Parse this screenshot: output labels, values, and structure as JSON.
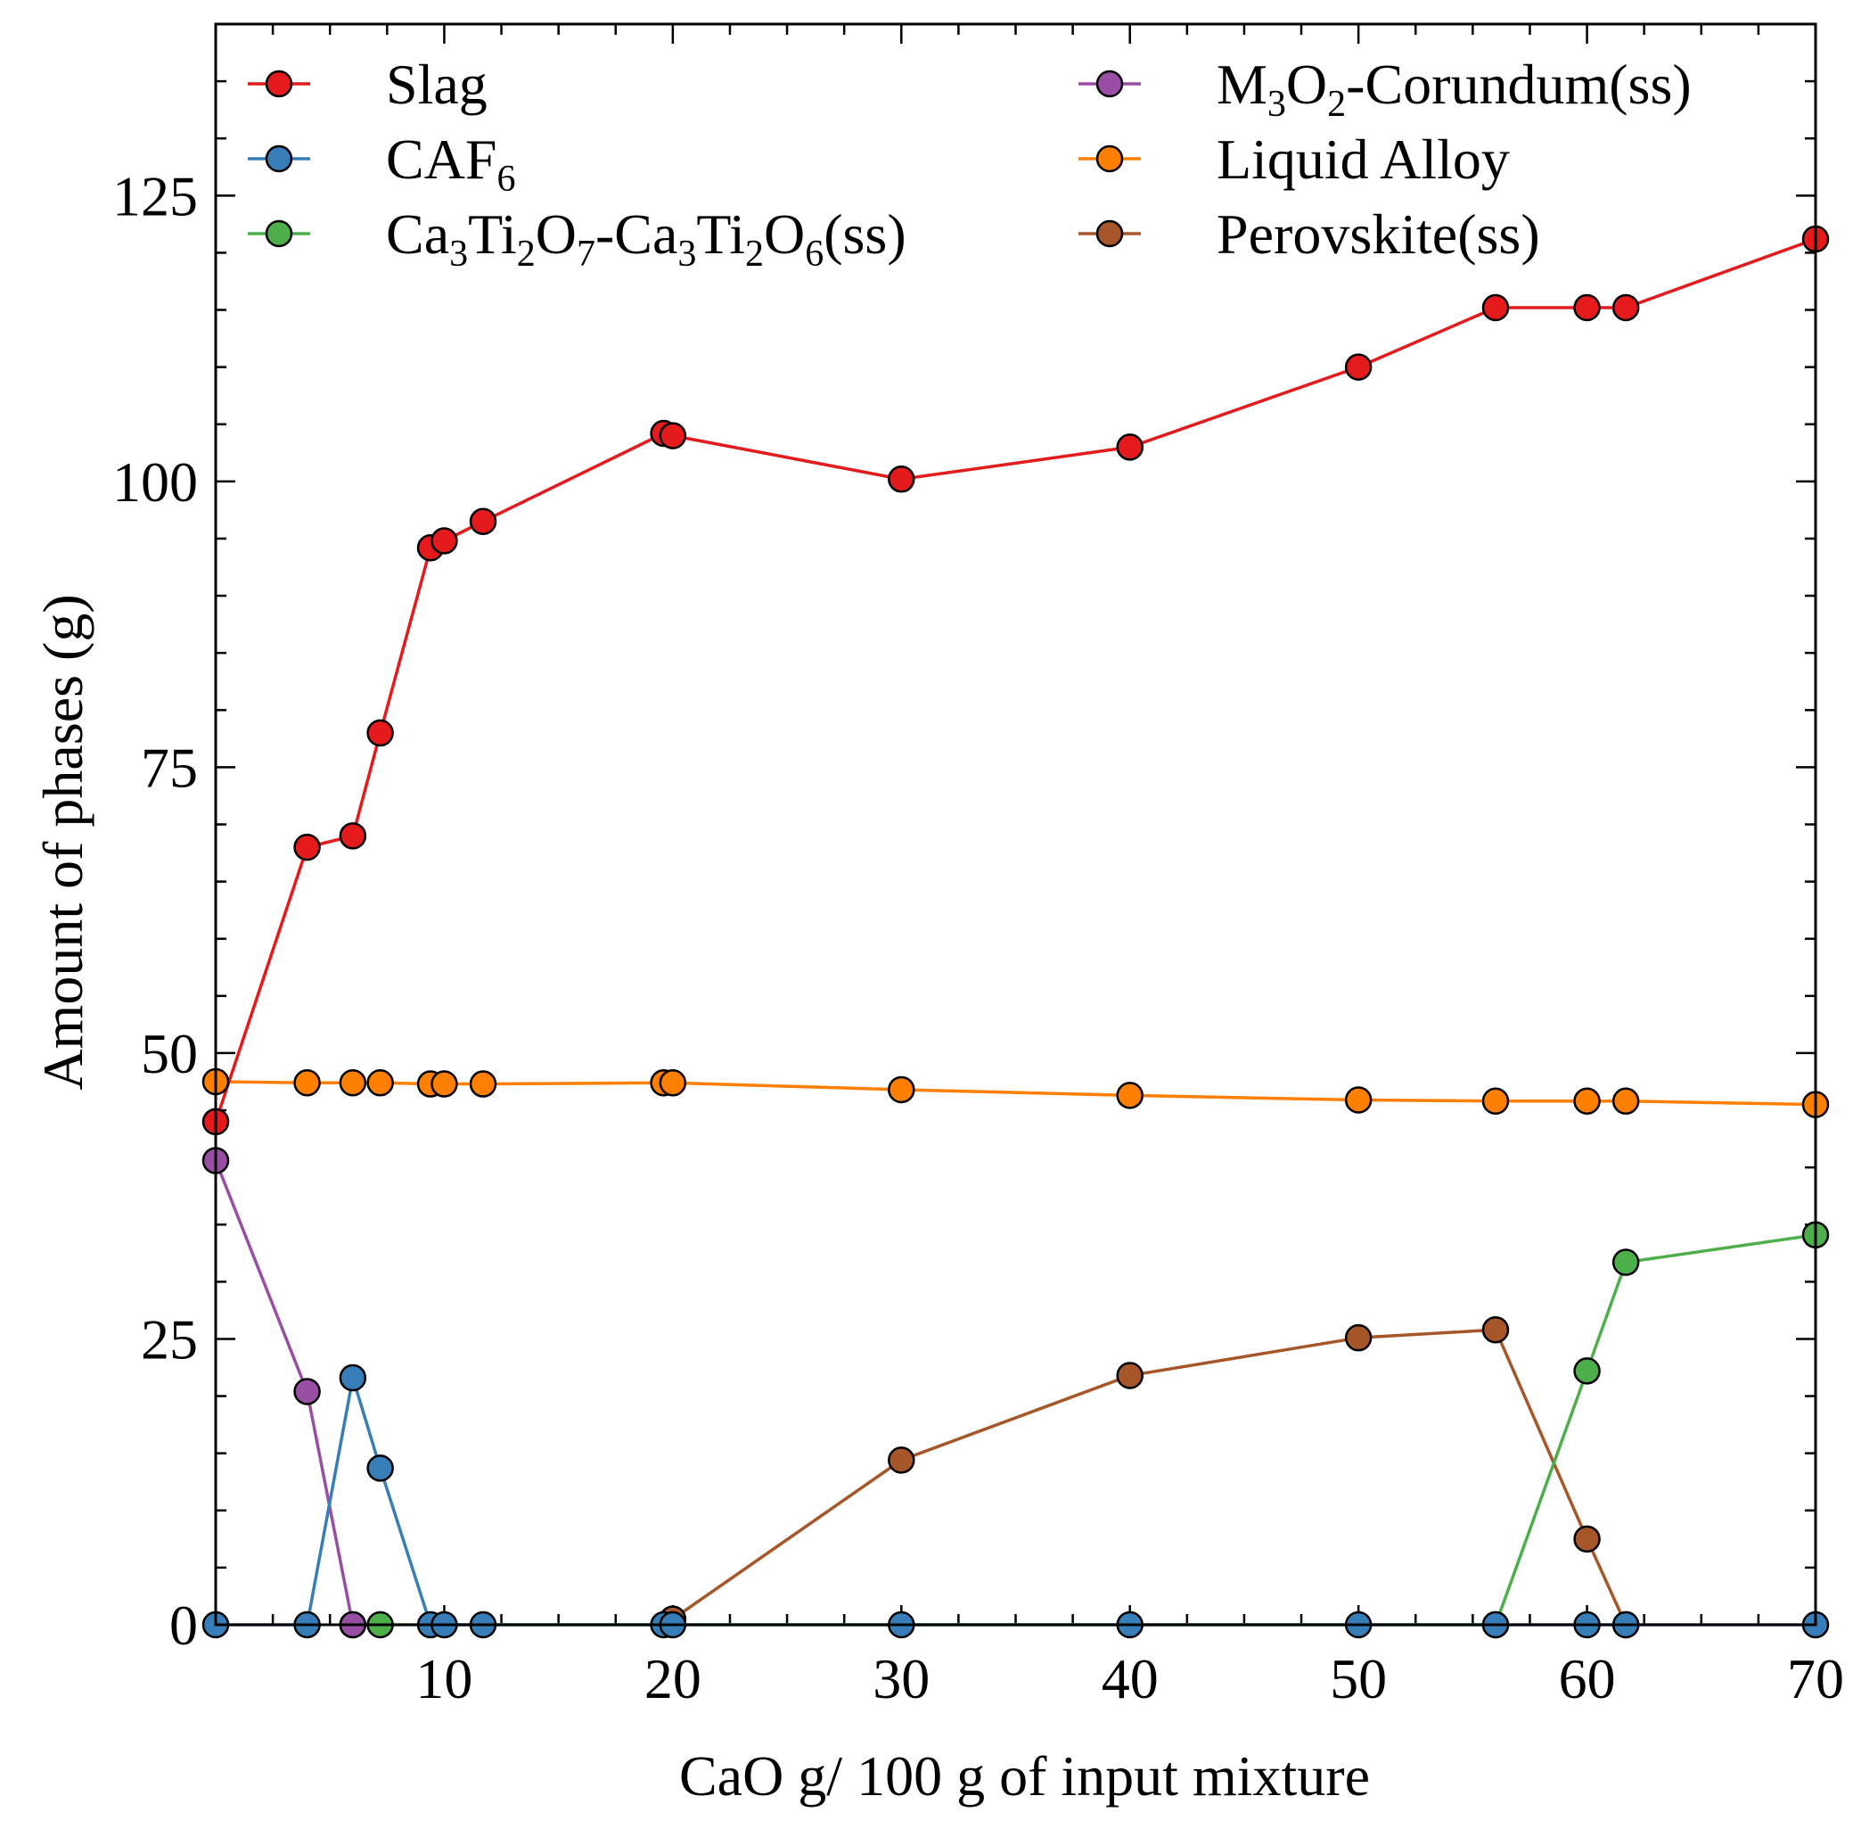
{
  "chart_data": {
    "type": "line",
    "title": "",
    "xlabel": "CaO g/ 100 g of input mixture",
    "ylabel": "Amount of phases (g)",
    "xlim": [
      0,
      70
    ],
    "ylim": [
      0,
      140
    ],
    "xticks": [
      10,
      20,
      30,
      40,
      50,
      60,
      70
    ],
    "yticks": [
      0,
      25,
      50,
      75,
      100,
      125
    ],
    "legend_position": "top",
    "series": [
      {
        "name": "Slag",
        "legend_parts": [
          [
            "Slag",
            ""
          ]
        ],
        "color": "#e41a1c",
        "x": [
          0,
          4,
          6,
          7.2,
          9.4,
          10,
          11.7,
          19.6,
          20,
          30,
          40,
          50,
          56,
          60,
          61.7,
          70
        ],
        "y": [
          44,
          68,
          69,
          78,
          94.2,
          94.8,
          96.5,
          104.2,
          104,
          100.2,
          103,
          110,
          115.2,
          115.2,
          115.2,
          121.2
        ]
      },
      {
        "name": "CAF6",
        "legend_parts": [
          [
            "CAF",
            ""
          ],
          [
            "6",
            "sub"
          ]
        ],
        "color": "#377eb8",
        "x": [
          0,
          4,
          6,
          7.2,
          9.4,
          10,
          11.7,
          19.6,
          20,
          30,
          40,
          50,
          56,
          60,
          61.7,
          70
        ],
        "y": [
          0,
          0,
          21.6,
          13.7,
          0,
          0,
          0,
          0,
          0,
          0,
          0,
          0,
          0,
          0,
          0,
          0
        ]
      },
      {
        "name": "Ca3Ti2O7-Ca3Ti2O6(ss)",
        "legend_parts": [
          [
            "Ca",
            ""
          ],
          [
            "3",
            "sub"
          ],
          [
            "Ti",
            ""
          ],
          [
            "2",
            "sub"
          ],
          [
            "O",
            ""
          ],
          [
            "7",
            "sub"
          ],
          [
            "-Ca",
            ""
          ],
          [
            "3",
            "sub"
          ],
          [
            "Ti",
            ""
          ],
          [
            "2",
            "sub"
          ],
          [
            "O",
            ""
          ],
          [
            "6",
            "sub"
          ],
          [
            "(ss)",
            ""
          ]
        ],
        "color": "#4daf4a",
        "x": [
          6,
          7.2,
          56,
          60,
          61.7,
          70
        ],
        "y": [
          0,
          0,
          0,
          22.2,
          31.7,
          34.1
        ]
      },
      {
        "name": "M3O2-Corundum(ss)",
        "legend_parts": [
          [
            "M",
            ""
          ],
          [
            "3",
            "sub"
          ],
          [
            "O",
            ""
          ],
          [
            "2",
            "sub"
          ],
          [
            "-Corundum(ss)",
            ""
          ]
        ],
        "color": "#984ea3",
        "x": [
          0,
          4,
          6
        ],
        "y": [
          40.6,
          20.4,
          0
        ]
      },
      {
        "name": "Liquid Alloy",
        "legend_parts": [
          [
            "Liquid Alloy",
            ""
          ]
        ],
        "color": "#ff7f00",
        "x": [
          0,
          4,
          6,
          7.2,
          9.4,
          10,
          11.7,
          19.6,
          20,
          30,
          40,
          50,
          56,
          60,
          61.7,
          70
        ],
        "y": [
          47.5,
          47.4,
          47.4,
          47.4,
          47.3,
          47.3,
          47.3,
          47.4,
          47.4,
          46.8,
          46.3,
          45.9,
          45.8,
          45.8,
          45.8,
          45.5
        ]
      },
      {
        "name": "Perovskite(ss)",
        "legend_parts": [
          [
            "Perovskite(ss)",
            ""
          ]
        ],
        "color": "#a65628",
        "x": [
          20,
          30,
          40,
          50,
          56,
          60,
          61.7
        ],
        "y": [
          0.5,
          14.4,
          21.8,
          25.1,
          25.8,
          7.5,
          0
        ]
      }
    ]
  }
}
